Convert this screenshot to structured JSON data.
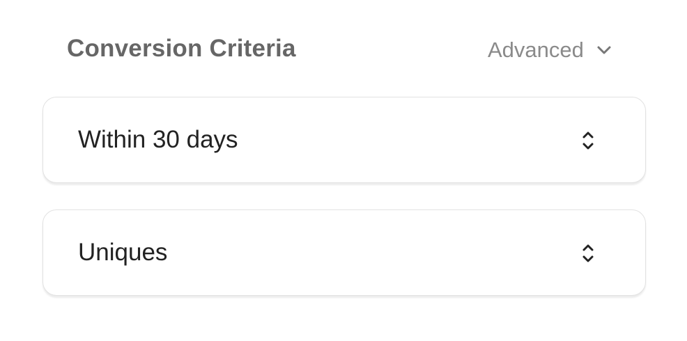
{
  "header": {
    "title": "Conversion Criteria",
    "advanced_label": "Advanced",
    "advanced_icon": "chevron-down-icon"
  },
  "selects": [
    {
      "value": "Within 30 days",
      "icon": "up-down-chevron-icon"
    },
    {
      "value": "Uniques",
      "icon": "up-down-chevron-icon"
    }
  ]
}
